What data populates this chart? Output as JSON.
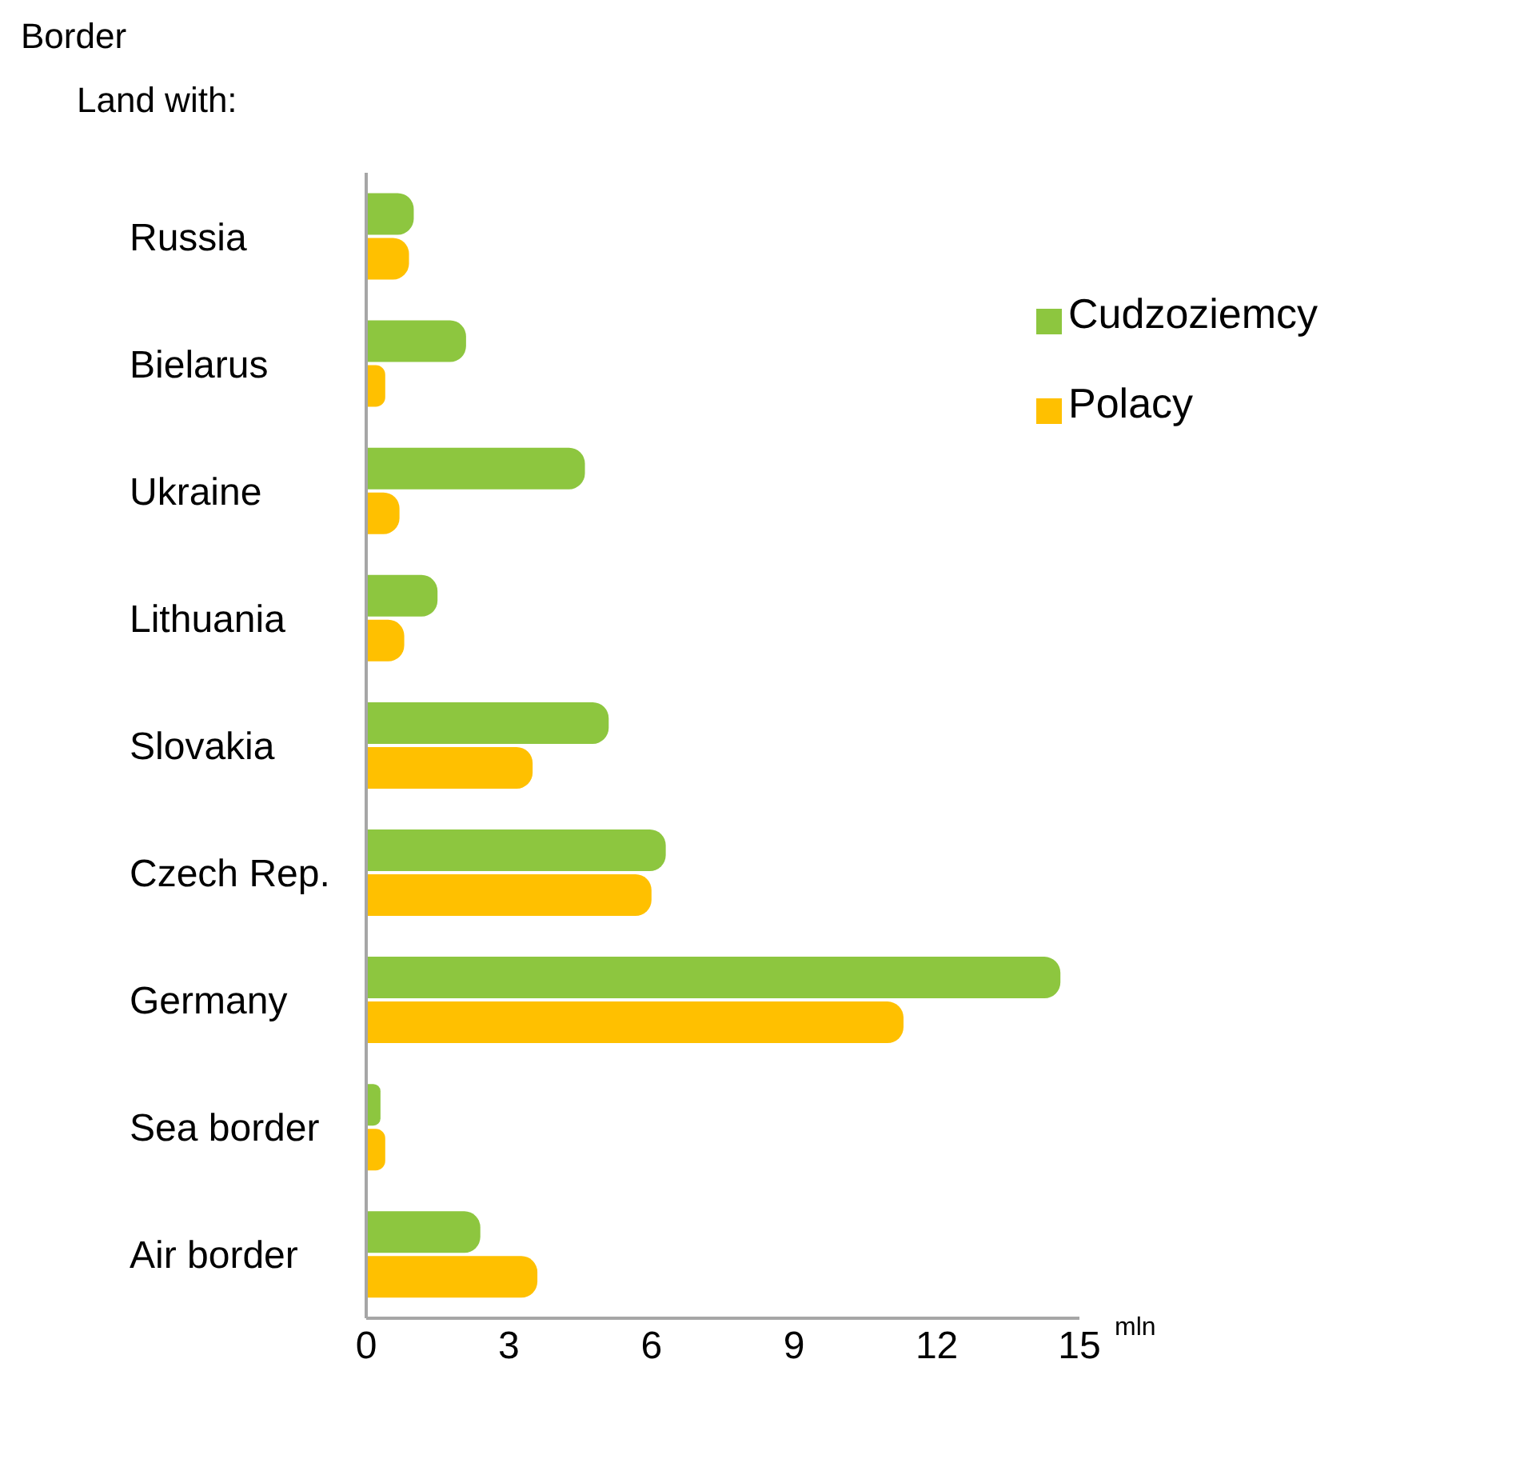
{
  "chart_data": {
    "type": "bar",
    "orientation": "horizontal",
    "title": "Border",
    "subtitle": "Land with:",
    "xlabel": "mln",
    "categories": [
      "Russia",
      "Bielarus",
      "Ukraine",
      "Lithuania",
      "Slovakia",
      "Czech Rep.",
      "Germany",
      "Sea border",
      "Air border"
    ],
    "series": [
      {
        "name": "Cudzoziemcy",
        "color": "#8dc63f",
        "values": [
          1.0,
          2.1,
          4.6,
          1.5,
          5.1,
          6.3,
          14.6,
          0.3,
          2.4
        ]
      },
      {
        "name": "Polacy",
        "color": "#ffc000",
        "values": [
          0.9,
          0.4,
          0.7,
          0.8,
          3.5,
          6.0,
          11.3,
          0.4,
          3.6
        ]
      }
    ],
    "xlim": [
      0,
      15
    ],
    "xticks": [
      0,
      3,
      6,
      9,
      12,
      15
    ],
    "legend": "top right"
  }
}
